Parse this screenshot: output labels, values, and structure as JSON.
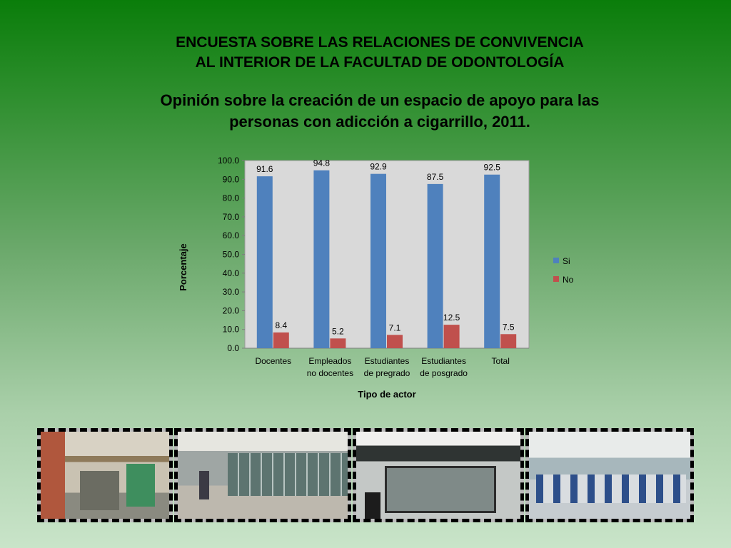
{
  "header": {
    "title_line1": "ENCUESTA SOBRE LAS RELACIONES DE CONVIVENCIA",
    "title_line2": "AL INTERIOR DE LA FACULTAD DE ODONTOLOGÍA",
    "subtitle_line1": "Opinión sobre la creación de un espacio de apoyo para las",
    "subtitle_line2": "personas con adicción a cigarrillo, 2011."
  },
  "chart_data": {
    "type": "bar",
    "categories": [
      [
        "Docentes"
      ],
      [
        "Empleados",
        "no docentes"
      ],
      [
        "Estudiantes",
        "de pregrado"
      ],
      [
        "Estudiantes",
        "de posgrado"
      ],
      [
        "Total"
      ]
    ],
    "series": [
      {
        "name": "Si",
        "color": "#4f81bd",
        "values": [
          91.6,
          94.8,
          92.9,
          87.5,
          92.5
        ],
        "labels": [
          "91.6",
          "94.8",
          "92.9",
          "87.5",
          "92.5"
        ]
      },
      {
        "name": "No",
        "color": "#c0504d",
        "values": [
          8.4,
          5.2,
          7.1,
          12.5,
          7.5
        ],
        "labels": [
          "8.4",
          "5.2",
          "7.1",
          "12.5",
          "7.5"
        ]
      }
    ],
    "xlabel": "Tipo de actor",
    "ylabel": "Porcentaje",
    "ylim": [
      0,
      100
    ],
    "yticks": [
      "0.0",
      "10.0",
      "20.0",
      "30.0",
      "40.0",
      "50.0",
      "60.0",
      "70.0",
      "80.0",
      "90.0",
      "100.0"
    ],
    "grid": false,
    "legend": "right",
    "plot_background": "#d9d9d9"
  },
  "photos": [
    {
      "name": "building-entrance-photo"
    },
    {
      "name": "corridor-photo"
    },
    {
      "name": "clinic-office-photo"
    },
    {
      "name": "dental-clinic-hall-photo"
    }
  ]
}
